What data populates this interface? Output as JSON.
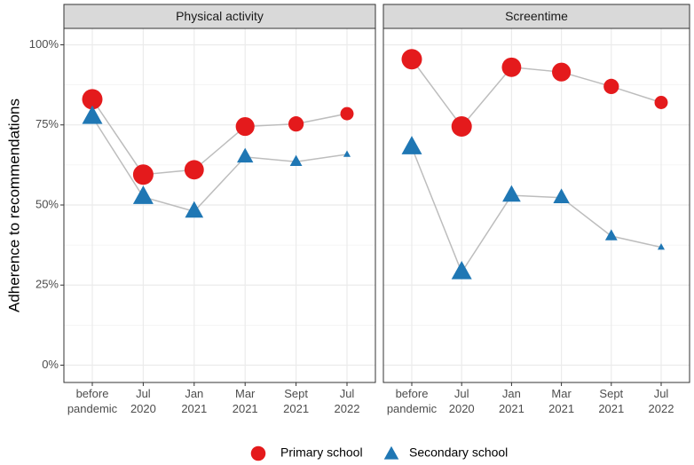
{
  "chart_data": {
    "type": "line",
    "ylabel": "Adherence to recommendations",
    "xlabel": "",
    "ylim": [
      0,
      100
    ],
    "yticks": [
      0,
      25,
      50,
      75,
      100
    ],
    "ytick_labels": [
      "0%",
      "25%",
      "50%",
      "75%",
      "100%"
    ],
    "categories": [
      [
        "before",
        "pandemic"
      ],
      [
        "Jul",
        "2020"
      ],
      [
        "Jan",
        "2021"
      ],
      [
        "Mar",
        "2021"
      ],
      [
        "Sept",
        "2021"
      ],
      [
        "Jul",
        "2022"
      ]
    ],
    "grid": true,
    "legend_position": "bottom",
    "colors": {
      "primary": "#e41a1c",
      "secondary": "#1f77b4",
      "line": "#bdbdbd",
      "panel_bg": "#ffffff",
      "strip_bg": "#d9d9d9",
      "grid_major": "#ebebeb",
      "border": "#333333"
    },
    "series_styles": [
      {
        "name": "Primary school",
        "shape": "circle",
        "color": "#e41a1c"
      },
      {
        "name": "Secondary school",
        "shape": "triangle",
        "color": "#1f77b4"
      }
    ],
    "panels": [
      {
        "title": "Physical activity",
        "series": [
          {
            "name": "Primary school",
            "values": [
              83,
              59.5,
              61,
              74.5,
              75.3,
              78.5
            ],
            "sizes": [
              1.0,
              1.0,
              0.95,
              0.92,
              0.75,
              0.65
            ]
          },
          {
            "name": "Secondary school",
            "values": [
              77.5,
              52.5,
              48,
              65,
              63.5,
              65.8
            ],
            "sizes": [
              1.0,
              1.0,
              0.9,
              0.8,
              0.6,
              0.35
            ]
          }
        ]
      },
      {
        "title": "Screentime",
        "series": [
          {
            "name": "Primary school",
            "values": [
              95.5,
              74.5,
              93,
              91.5,
              87,
              82
            ],
            "sizes": [
              1.0,
              1.0,
              0.95,
              0.92,
              0.75,
              0.65
            ]
          },
          {
            "name": "Secondary school",
            "values": [
              68,
              29,
              53,
              52.3,
              40.3,
              36.8
            ],
            "sizes": [
              1.0,
              1.0,
              0.9,
              0.8,
              0.6,
              0.35
            ]
          }
        ]
      }
    ]
  }
}
